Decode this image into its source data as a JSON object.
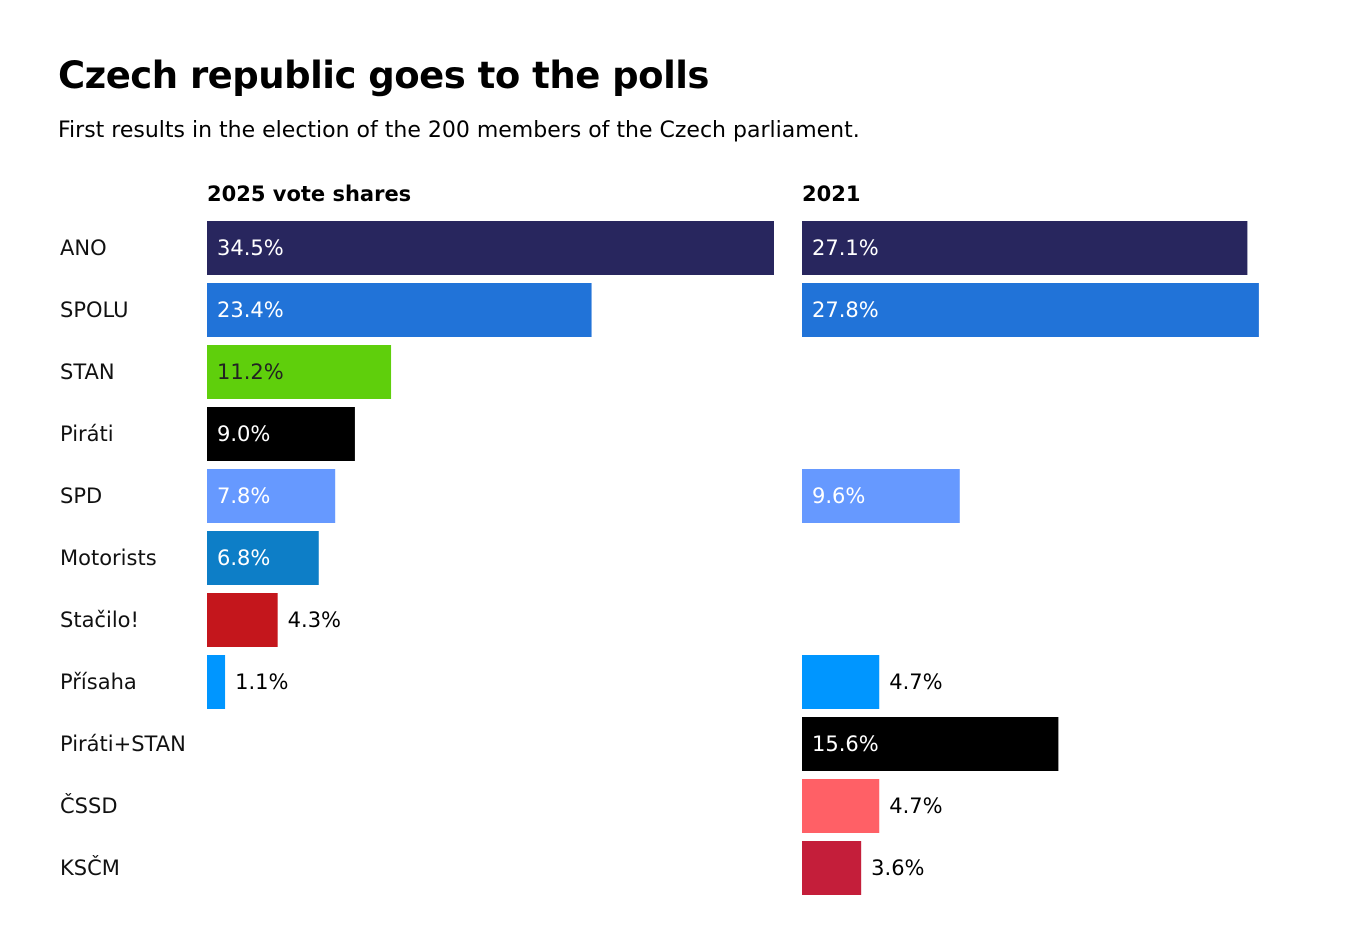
{
  "title": "Czech republic goes to the polls",
  "subtitle": "First results in the election of the 200 members of the Czech parliament.",
  "chart_data": {
    "type": "bar",
    "orientation": "horizontal",
    "title": "Czech republic goes to the polls",
    "subtitle": "First results in the election of the 200 members of the Czech parliament.",
    "categories": [
      "ANO",
      "SPOLU",
      "STAN",
      "Piráti",
      "SPD",
      "Motorists",
      "Stačilo!",
      "Přísaha",
      "Piráti+STAN",
      "ČSSD",
      "KSČM"
    ],
    "colors": [
      "#28265e",
      "#2173d8",
      "#5fcf0c",
      "#000000",
      "#6699ff",
      "#0d7ec7",
      "#c4161c",
      "#0096ff",
      "#000000",
      "#ff6066",
      "#c41e3a"
    ],
    "series": [
      {
        "name": "2025 vote shares",
        "values": [
          34.5,
          23.4,
          11.2,
          9.0,
          7.8,
          6.8,
          4.3,
          1.1,
          null,
          null,
          null
        ],
        "labels": [
          "34.5%",
          "23.4%",
          "11.2%",
          "9.0%",
          "7.8%",
          "6.8%",
          "4.3%",
          "1.1%",
          null,
          null,
          null
        ]
      },
      {
        "name": "2021",
        "values": [
          27.1,
          27.8,
          null,
          null,
          9.6,
          null,
          null,
          4.7,
          15.6,
          4.7,
          3.6
        ],
        "labels": [
          "27.1%",
          "27.8%",
          null,
          null,
          "9.6%",
          null,
          null,
          "4.7%",
          "15.6%",
          "4.7%",
          "3.6%"
        ]
      }
    ],
    "label_text_colors": [
      "#ffffff",
      "#ffffff",
      "#222222",
      "#ffffff",
      "#ffffff",
      "#ffffff",
      "#000000",
      "#000000",
      "#ffffff",
      "#ffffff",
      "#000000"
    ],
    "xlim": [
      0,
      34.5
    ]
  }
}
